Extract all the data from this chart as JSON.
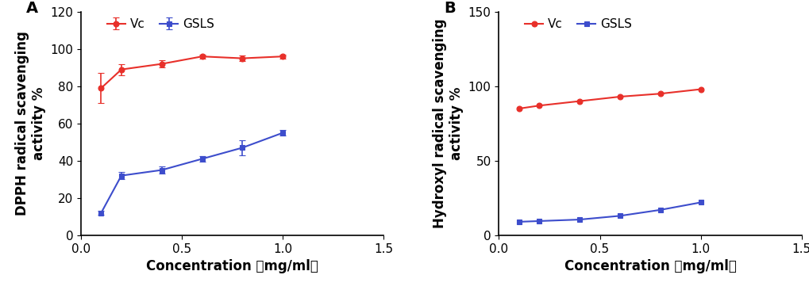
{
  "panel_A": {
    "label": "A",
    "xlabel": "Concentration（mg/ml）",
    "ylabel": "DPPH radical scavenging\nactivity %",
    "xlim": [
      0,
      1.5
    ],
    "ylim": [
      0,
      120
    ],
    "xticks": [
      0.0,
      0.5,
      1.0,
      1.5
    ],
    "yticks": [
      0,
      20,
      40,
      60,
      80,
      100,
      120
    ],
    "Vc": {
      "x": [
        0.1,
        0.2,
        0.4,
        0.6,
        0.8,
        1.0
      ],
      "y": [
        79,
        89,
        92,
        96,
        95,
        96
      ],
      "yerr": [
        8,
        3,
        2,
        1,
        1.5,
        1
      ],
      "color": "#e8302a",
      "label": "Vc"
    },
    "GSLS": {
      "x": [
        0.1,
        0.2,
        0.4,
        0.6,
        0.8,
        1.0
      ],
      "y": [
        12,
        32,
        35,
        41,
        47,
        55
      ],
      "yerr": [
        1,
        2,
        2,
        1.5,
        4,
        1.5
      ],
      "color": "#3d4dcc",
      "label": "GSLS"
    }
  },
  "panel_B": {
    "label": "B",
    "xlabel": "Concentration（mg/ml）",
    "ylabel": "Hydroxyl radical scavenging\nactivity %",
    "xlim": [
      0,
      1.5
    ],
    "ylim": [
      0,
      150
    ],
    "xticks": [
      0.0,
      0.5,
      1.0,
      1.5
    ],
    "yticks": [
      0,
      50,
      100,
      150
    ],
    "Vc": {
      "x": [
        0.1,
        0.2,
        0.4,
        0.6,
        0.8,
        1.0
      ],
      "y": [
        85,
        87,
        90,
        93,
        95,
        98
      ],
      "color": "#e8302a",
      "label": "Vc"
    },
    "GSLS": {
      "x": [
        0.1,
        0.2,
        0.4,
        0.6,
        0.8,
        1.0
      ],
      "y": [
        9,
        9.5,
        10.5,
        13,
        17,
        22
      ],
      "color": "#3d4dcc",
      "label": "GSLS"
    }
  },
  "legend_loc": "upper left",
  "marker_circle": "o",
  "marker_square": "s",
  "markersize": 5,
  "linewidth": 1.5,
  "capsize": 3,
  "elinewidth": 1.2,
  "font_size_label": 12,
  "font_size_tick": 11,
  "font_size_panel": 14,
  "font_size_legend": 11
}
